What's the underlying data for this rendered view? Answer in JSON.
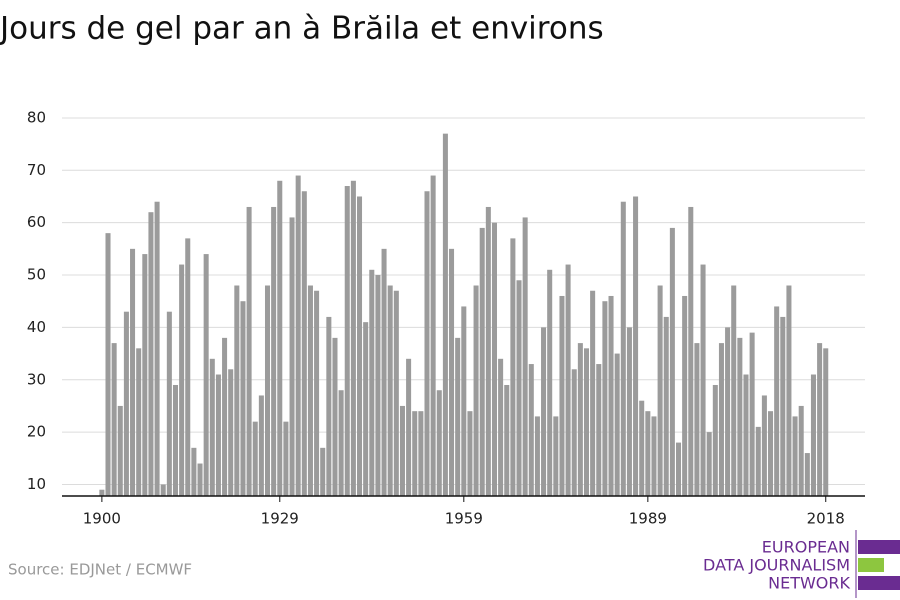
{
  "chart_data": {
    "type": "bar",
    "title": "Jours de gel par an à Brăila et environs",
    "source": "Source: EDJNet / ECMWF",
    "logo": [
      "EUROPEAN",
      "DATA JOURNALISM",
      "NETWORK"
    ],
    "color": "#9b9b9b",
    "x": [
      1900,
      1901,
      1902,
      1903,
      1904,
      1905,
      1906,
      1907,
      1908,
      1909,
      1910,
      1911,
      1912,
      1913,
      1914,
      1915,
      1916,
      1917,
      1918,
      1919,
      1920,
      1921,
      1922,
      1923,
      1924,
      1925,
      1926,
      1927,
      1928,
      1929,
      1930,
      1931,
      1932,
      1933,
      1934,
      1935,
      1936,
      1937,
      1938,
      1939,
      1940,
      1941,
      1942,
      1943,
      1944,
      1945,
      1946,
      1947,
      1948,
      1949,
      1950,
      1951,
      1952,
      1953,
      1954,
      1955,
      1956,
      1957,
      1958,
      1959,
      1960,
      1961,
      1962,
      1963,
      1964,
      1965,
      1966,
      1967,
      1968,
      1969,
      1970,
      1971,
      1972,
      1973,
      1974,
      1975,
      1976,
      1977,
      1978,
      1979,
      1980,
      1981,
      1982,
      1983,
      1984,
      1985,
      1986,
      1987,
      1988,
      1989,
      1990,
      1991,
      1992,
      1993,
      1994,
      1995,
      1996,
      1997,
      1998,
      1999,
      2000,
      2001,
      2002,
      2003,
      2004,
      2005,
      2006,
      2007,
      2008,
      2009,
      2010,
      2011,
      2012,
      2013,
      2014,
      2015,
      2016,
      2017,
      2018
    ],
    "values": [
      9,
      58,
      37,
      25,
      43,
      55,
      36,
      54,
      62,
      64,
      10,
      43,
      29,
      52,
      57,
      17,
      14,
      54,
      34,
      31,
      38,
      32,
      48,
      45,
      63,
      22,
      27,
      48,
      63,
      68,
      22,
      61,
      69,
      66,
      48,
      47,
      17,
      42,
      38,
      28,
      67,
      68,
      65,
      41,
      51,
      50,
      55,
      48,
      47,
      25,
      34,
      24,
      24,
      66,
      69,
      28,
      77,
      55,
      38,
      44,
      24,
      48,
      59,
      63,
      60,
      34,
      29,
      57,
      49,
      61,
      33,
      23,
      40,
      51,
      23,
      46,
      52,
      32,
      37,
      36,
      47,
      33,
      45,
      46,
      35,
      64,
      40,
      65,
      26,
      24,
      23,
      48,
      42,
      59,
      18,
      46,
      63,
      37,
      52,
      20,
      29,
      37,
      40,
      48,
      38,
      31,
      39,
      21,
      27,
      24,
      44,
      42,
      48,
      23,
      25,
      16,
      31,
      37,
      36
    ],
    "xlim": [
      1893.5,
      2024.4
    ],
    "xticks": [
      1900,
      1929,
      1959,
      1989,
      2018
    ],
    "ylim": [
      7.8,
      84
    ],
    "yticks": [
      10,
      20,
      30,
      40,
      50,
      60,
      70,
      80
    ],
    "grid": true
  }
}
